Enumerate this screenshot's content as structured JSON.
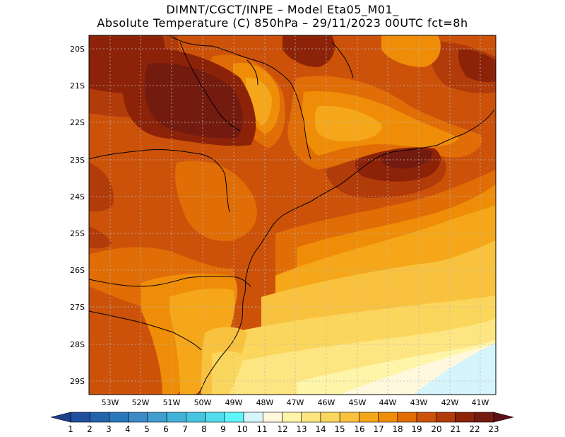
{
  "header": {
    "line1": "DIMNT/CGCT/INPE –  Model Eta05_M01_",
    "line2": "Absolute Temperature (C) 850hPa –  29/11/2023 00UTC fct=8h"
  },
  "map": {
    "lat_ticks": [
      "20S",
      "21S",
      "22S",
      "23S",
      "24S",
      "25S",
      "26S",
      "27S",
      "28S",
      "29S"
    ],
    "lon_ticks": [
      "53W",
      "52W",
      "51W",
      "50W",
      "49W",
      "48W",
      "47W",
      "46W",
      "45W",
      "44W",
      "43W",
      "42W",
      "41W"
    ]
  },
  "colorbar": {
    "labels": [
      "1",
      "2",
      "3",
      "4",
      "5",
      "6",
      "7",
      "8",
      "9",
      "10",
      "11",
      "12",
      "13",
      "14",
      "15",
      "16",
      "17",
      "18",
      "19",
      "20",
      "21",
      "22",
      "23"
    ],
    "colors": [
      "#1c3f8c",
      "#1f4f9c",
      "#2463ac",
      "#2a78bb",
      "#3b8bc6",
      "#3f9ecd",
      "#43b2d8",
      "#46c5e2",
      "#52dced",
      "#5ef6fb",
      "#d6f4fb",
      "#fff8dc",
      "#fef5a8",
      "#fde581",
      "#fbd65c",
      "#f9c23e",
      "#f5a719",
      "#ef8d08",
      "#e06d06",
      "#cc520a",
      "#b23b0a",
      "#8c2309",
      "#741b10",
      "#5c0f16"
    ]
  }
}
